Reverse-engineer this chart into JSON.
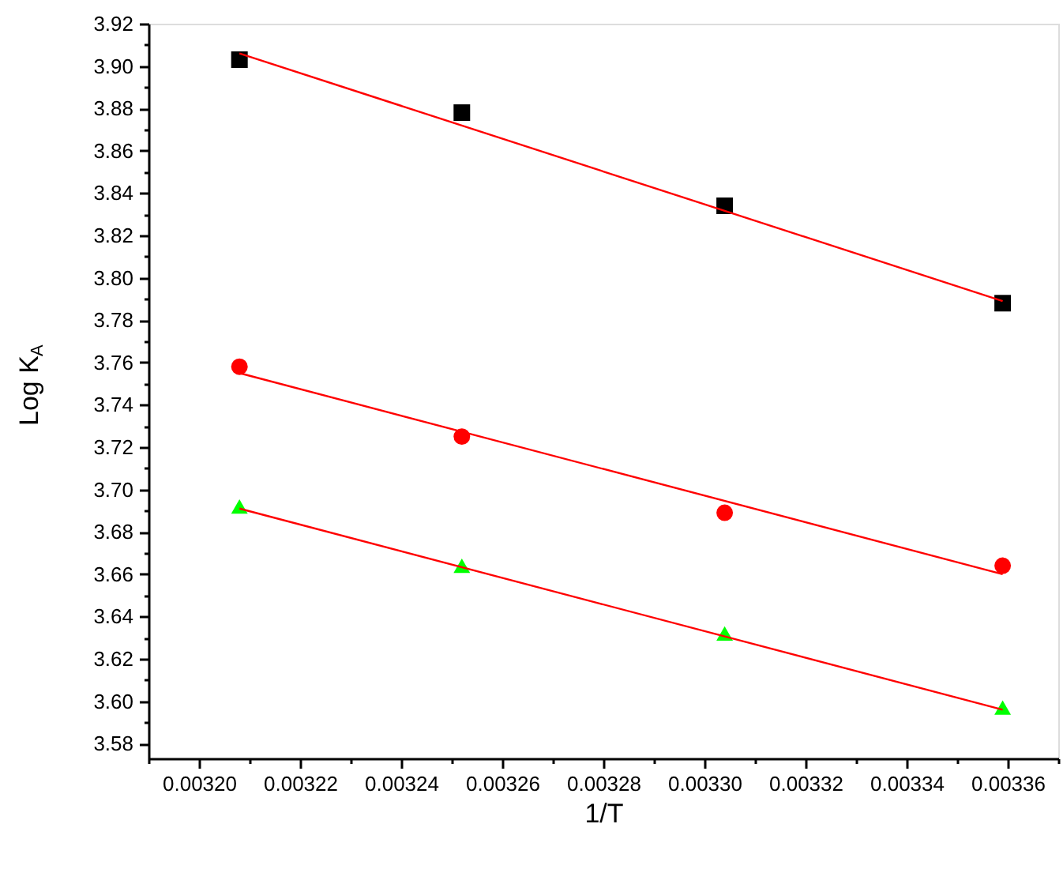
{
  "chart_data": {
    "type": "scatter",
    "xlabel": "1/T",
    "ylabel": "Log K$_{A}$",
    "xlim": [
      0.00319,
      0.00337
    ],
    "ylim": [
      3.573,
      3.92
    ],
    "xticks": [
      {
        "value": 0.00319,
        "label": null
      },
      {
        "value": 0.0032,
        "label": "0.00320"
      },
      {
        "value": 0.00321,
        "label": null
      },
      {
        "value": 0.00322,
        "label": "0.00322"
      },
      {
        "value": 0.00323,
        "label": null
      },
      {
        "value": 0.00324,
        "label": "0.00324"
      },
      {
        "value": 0.00325,
        "label": null
      },
      {
        "value": 0.00326,
        "label": "0.00326"
      },
      {
        "value": 0.00327,
        "label": null
      },
      {
        "value": 0.00328,
        "label": "0.00328"
      },
      {
        "value": 0.00329,
        "label": null
      },
      {
        "value": 0.0033,
        "label": "0.00330"
      },
      {
        "value": 0.00331,
        "label": null
      },
      {
        "value": 0.00332,
        "label": "0.00332"
      },
      {
        "value": 0.00333,
        "label": null
      },
      {
        "value": 0.00334,
        "label": "0.00334"
      },
      {
        "value": 0.00335,
        "label": null
      },
      {
        "value": 0.00336,
        "label": "0.00336"
      },
      {
        "value": 0.00337,
        "label": null
      }
    ],
    "yticks": [
      {
        "value": 3.58,
        "label": "3.58"
      },
      {
        "value": 3.59,
        "label": null
      },
      {
        "value": 3.6,
        "label": "3.60"
      },
      {
        "value": 3.61,
        "label": null
      },
      {
        "value": 3.62,
        "label": "3.62"
      },
      {
        "value": 3.63,
        "label": null
      },
      {
        "value": 3.64,
        "label": "3.64"
      },
      {
        "value": 3.65,
        "label": null
      },
      {
        "value": 3.66,
        "label": "3.66"
      },
      {
        "value": 3.67,
        "label": null
      },
      {
        "value": 3.68,
        "label": "3.68"
      },
      {
        "value": 3.69,
        "label": null
      },
      {
        "value": 3.7,
        "label": "3.70"
      },
      {
        "value": 3.71,
        "label": null
      },
      {
        "value": 3.72,
        "label": "3.72"
      },
      {
        "value": 3.73,
        "label": null
      },
      {
        "value": 3.74,
        "label": "3.74"
      },
      {
        "value": 3.75,
        "label": null
      },
      {
        "value": 3.76,
        "label": "3.76"
      },
      {
        "value": 3.77,
        "label": null
      },
      {
        "value": 3.78,
        "label": "3.78"
      },
      {
        "value": 3.79,
        "label": null
      },
      {
        "value": 3.8,
        "label": "3.80"
      },
      {
        "value": 3.81,
        "label": null
      },
      {
        "value": 3.82,
        "label": "3.82"
      },
      {
        "value": 3.83,
        "label": null
      },
      {
        "value": 3.84,
        "label": "3.84"
      },
      {
        "value": 3.85,
        "label": null
      },
      {
        "value": 3.86,
        "label": "3.86"
      },
      {
        "value": 3.87,
        "label": null
      },
      {
        "value": 3.88,
        "label": "3.88"
      },
      {
        "value": 3.89,
        "label": null
      },
      {
        "value": 3.9,
        "label": "3.90"
      },
      {
        "value": 3.91,
        "label": null
      },
      {
        "value": 3.92,
        "label": "3.92"
      }
    ],
    "grid": false,
    "series": [
      {
        "marker": "square",
        "color": "#000000",
        "x": [
          0.003208,
          0.003252,
          0.003304,
          0.003359
        ],
        "values": [
          3.903,
          3.878,
          3.834,
          3.788
        ]
      },
      {
        "marker": "circle",
        "color": "#ff0000",
        "x": [
          0.003208,
          0.003252,
          0.003304,
          0.003359
        ],
        "values": [
          3.758,
          3.725,
          3.689,
          3.664
        ]
      },
      {
        "marker": "triangle",
        "color": "#00ff00",
        "x": [
          0.003208,
          0.003252,
          0.003304,
          0.003359
        ],
        "values": [
          3.692,
          3.664,
          3.632,
          3.597
        ]
      },
      {
        "type": "line",
        "marker": "none",
        "color": "#ff0000",
        "x": [
          0.003208,
          0.003359
        ],
        "values": [
          3.906,
          3.789
        ]
      },
      {
        "type": "line",
        "marker": "none",
        "color": "#ff0000",
        "x": [
          0.003208,
          0.003359
        ],
        "values": [
          3.755,
          3.66
        ]
      },
      {
        "type": "line",
        "marker": "none",
        "color": "#ff0000",
        "x": [
          0.003208,
          0.003359
        ],
        "values": [
          3.691,
          3.596
        ]
      }
    ]
  }
}
